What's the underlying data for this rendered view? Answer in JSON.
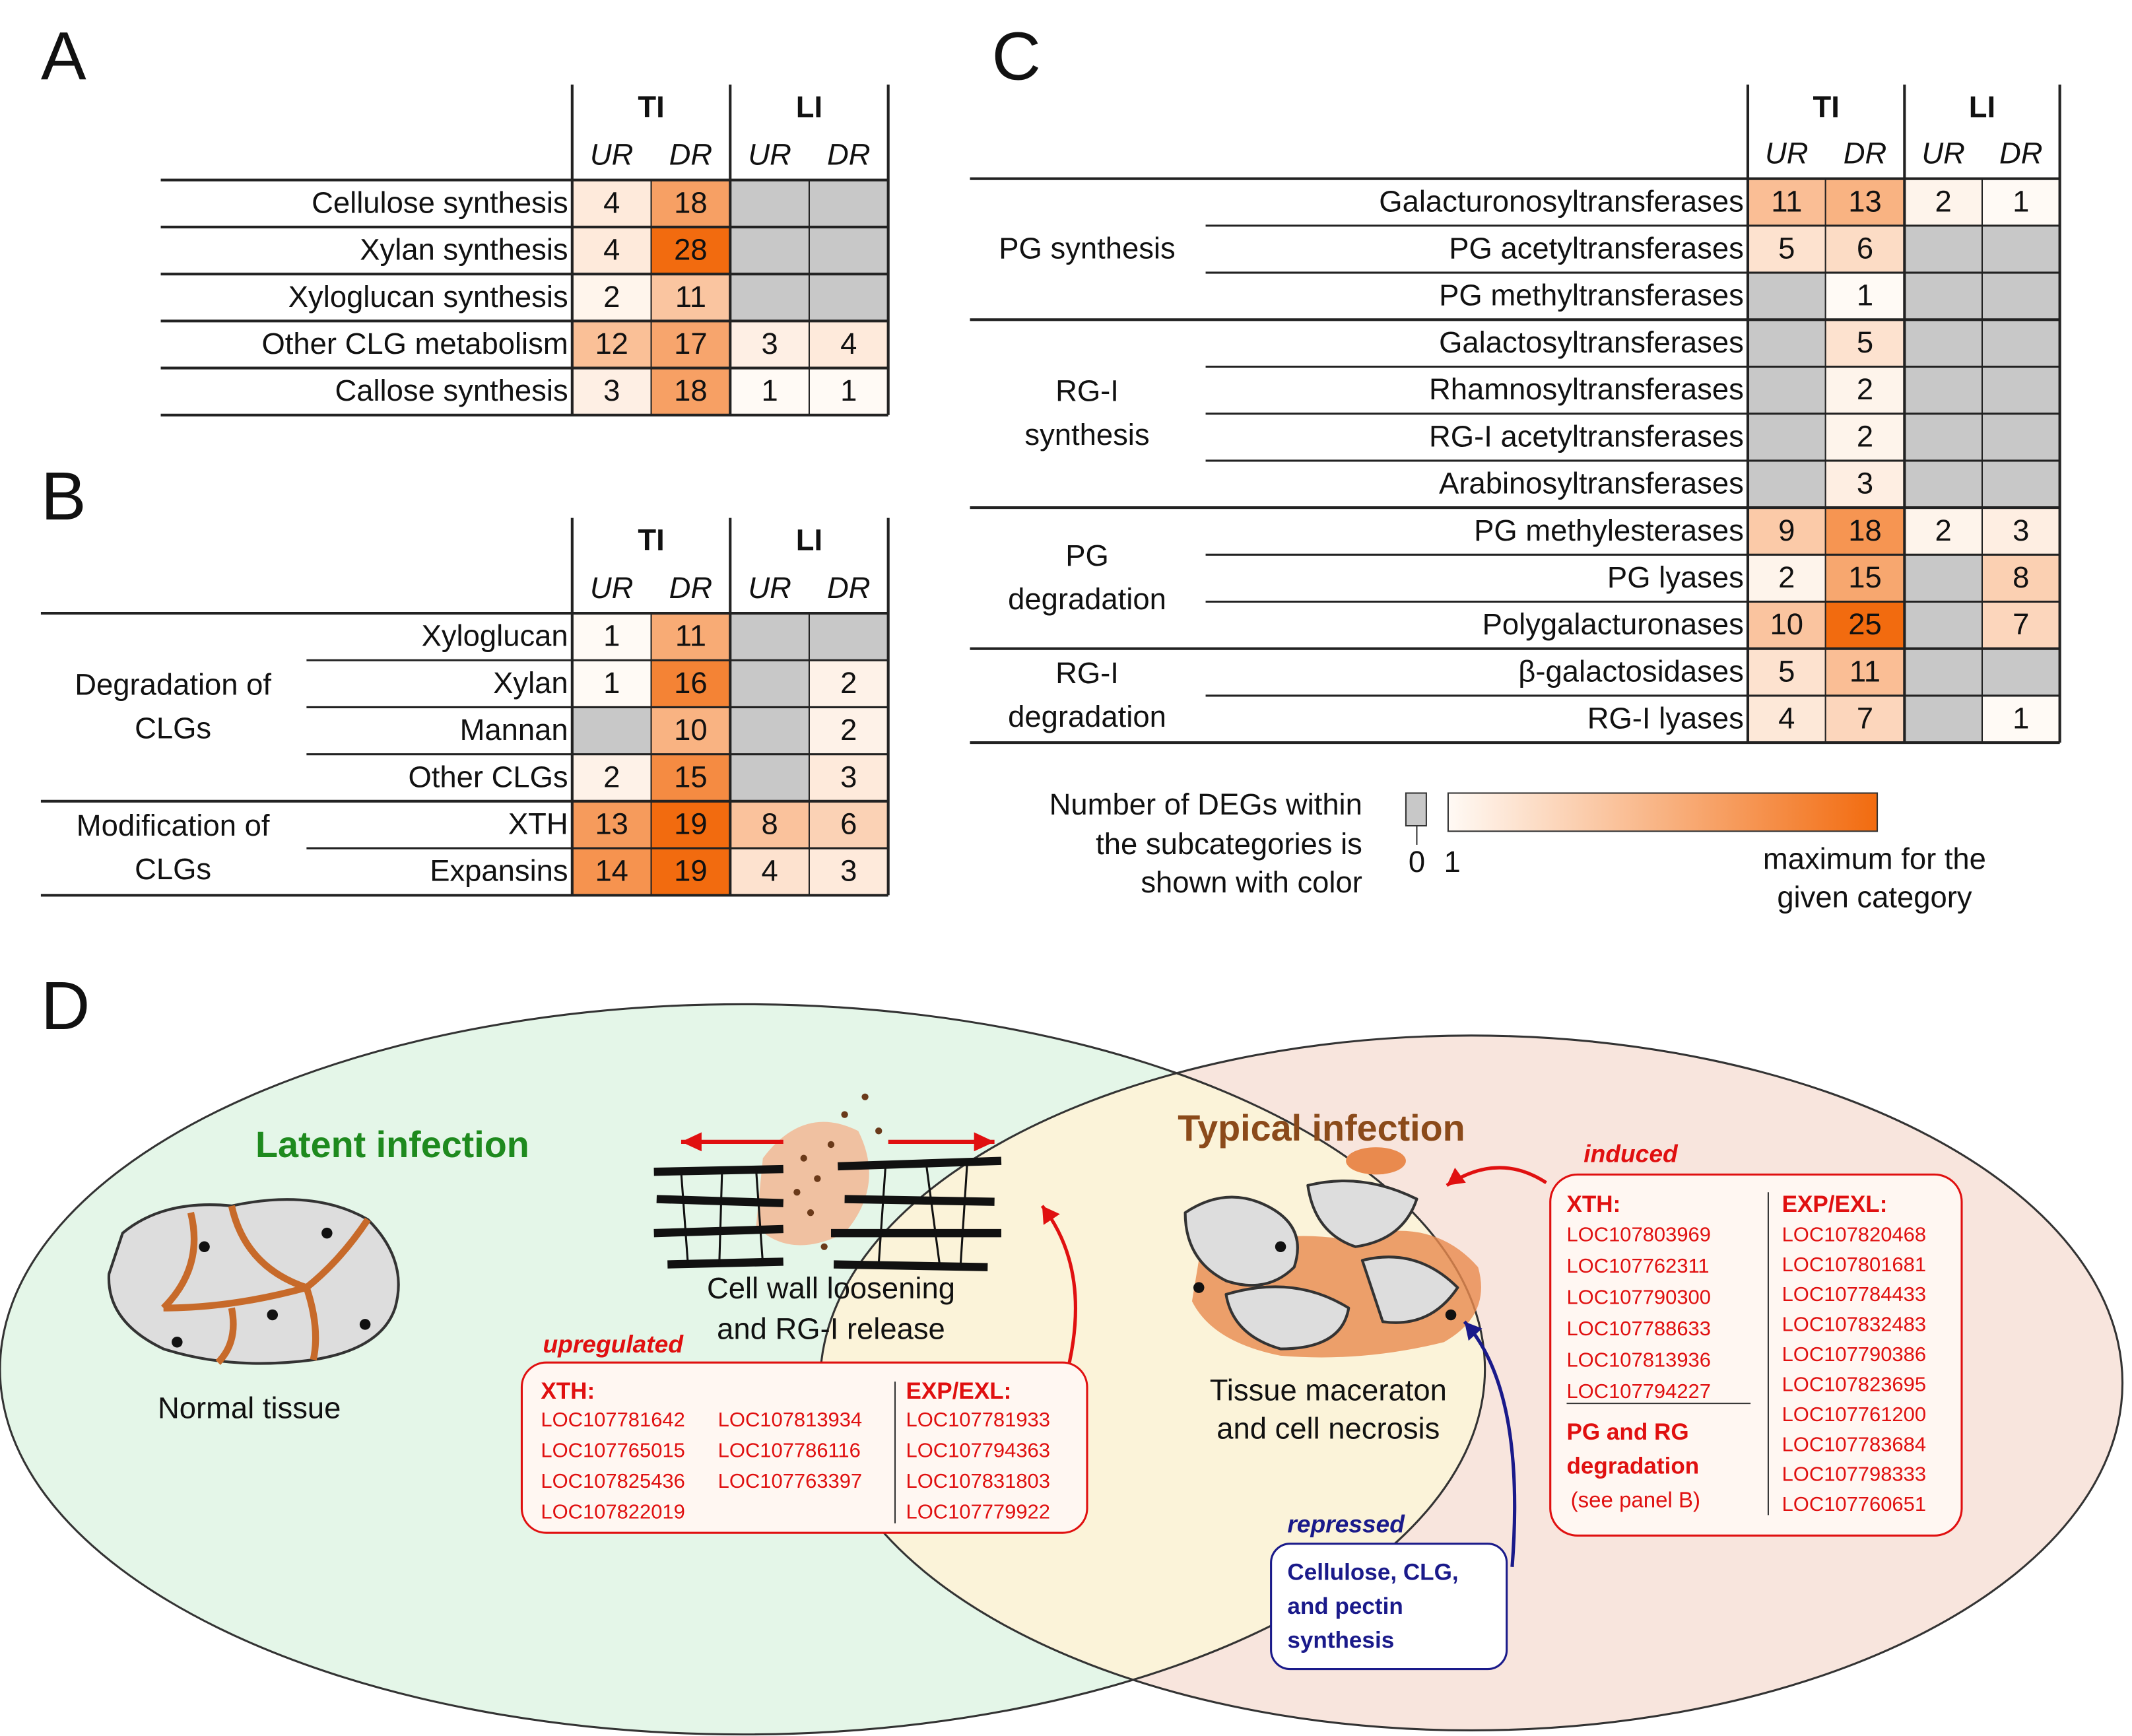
{
  "panel_a": {
    "label": "A",
    "groups": [
      {
        "name": "TI",
        "cols": [
          "UR",
          "DR"
        ]
      },
      {
        "name": "LI",
        "cols": [
          "UR",
          "DR"
        ]
      }
    ],
    "rows": [
      {
        "name": "Cellulose synthesis",
        "values": [
          4,
          18,
          null,
          null
        ]
      },
      {
        "name": "Xylan synthesis",
        "values": [
          4,
          28,
          null,
          null
        ]
      },
      {
        "name": "Xyloglucan synthesis",
        "values": [
          2,
          11,
          null,
          null
        ]
      },
      {
        "name": "Other CLG metabolism",
        "values": [
          12,
          17,
          3,
          4
        ]
      },
      {
        "name": "Callose synthesis",
        "values": [
          3,
          18,
          1,
          1
        ]
      }
    ]
  },
  "panel_b": {
    "label": "B",
    "groups": [
      {
        "name": "TI",
        "cols": [
          "UR",
          "DR"
        ]
      },
      {
        "name": "LI",
        "cols": [
          "UR",
          "DR"
        ]
      }
    ],
    "sections": [
      {
        "label": [
          "Degradation of",
          "CLGs"
        ],
        "rows": [
          {
            "name": "Xyloglucan",
            "values": [
              1,
              11,
              null,
              null
            ]
          },
          {
            "name": "Xylan",
            "values": [
              1,
              16,
              null,
              2
            ]
          },
          {
            "name": "Mannan",
            "values": [
              null,
              10,
              null,
              2
            ]
          },
          {
            "name": "Other CLGs",
            "values": [
              2,
              15,
              null,
              3
            ]
          }
        ]
      },
      {
        "label": [
          "Modification of",
          "CLGs"
        ],
        "rows": [
          {
            "name": "XTH",
            "values": [
              13,
              19,
              8,
              6
            ]
          },
          {
            "name": "Expansins",
            "values": [
              14,
              19,
              4,
              3
            ]
          }
        ]
      }
    ]
  },
  "panel_c": {
    "label": "C",
    "groups": [
      {
        "name": "TI",
        "cols": [
          "UR",
          "DR"
        ]
      },
      {
        "name": "LI",
        "cols": [
          "UR",
          "DR"
        ]
      }
    ],
    "sections": [
      {
        "label": [
          "PG synthesis"
        ],
        "rows": [
          {
            "name": "Galacturonosyltransferases",
            "values": [
              11,
              13,
              2,
              1
            ]
          },
          {
            "name": "PG acetyltransferases",
            "values": [
              5,
              6,
              null,
              null
            ]
          },
          {
            "name": "PG methyltransferases",
            "values": [
              null,
              1,
              null,
              null
            ]
          }
        ]
      },
      {
        "label": [
          "RG-I",
          "synthesis"
        ],
        "rows": [
          {
            "name": "Galactosyltransferases",
            "values": [
              null,
              5,
              null,
              null
            ]
          },
          {
            "name": "Rhamnosyltransferases",
            "values": [
              null,
              2,
              null,
              null
            ]
          },
          {
            "name": "RG-I acetyltransferases",
            "values": [
              null,
              2,
              null,
              null
            ]
          },
          {
            "name": "Arabinosyltransferases",
            "values": [
              null,
              3,
              null,
              null
            ]
          }
        ]
      },
      {
        "label": [
          "PG",
          "degradation"
        ],
        "rows": [
          {
            "name": "PG methylesterases",
            "values": [
              9,
              18,
              2,
              3
            ]
          },
          {
            "name": "PG lyases",
            "values": [
              2,
              15,
              null,
              8
            ]
          },
          {
            "name": "Polygalacturonases",
            "values": [
              10,
              25,
              null,
              7
            ]
          }
        ]
      },
      {
        "label": [
          "RG-I",
          "degradation"
        ],
        "rows": [
          {
            "name": "β-galactosidases",
            "values": [
              5,
              11,
              null,
              null
            ]
          },
          {
            "name": "RG-I lyases",
            "values": [
              4,
              7,
              null,
              1
            ]
          }
        ]
      }
    ]
  },
  "legend": {
    "caption": [
      "Number of DEGs within",
      "the subcategories is",
      "shown with color"
    ],
    "zero": 0,
    "one": 1,
    "max": [
      "maximum for the",
      "given category"
    ]
  },
  "diagram": {
    "label": "D",
    "latent": "Latent infection",
    "typical": "Typical infection",
    "normal": "Normal tissue",
    "loosening": [
      "Cell wall loosening",
      "and RG-I release"
    ],
    "upregulated": {
      "title": "upregulated",
      "xth_head": "XTH:",
      "xth": [
        "LOC107781642",
        "LOC107765015",
        "LOC107825436",
        "LOC107822019",
        "LOC107813934",
        "LOC107786116",
        "LOC107763397"
      ],
      "exp_head": "EXP/EXL:",
      "exp": [
        "LOC107781933",
        "LOC107794363",
        "LOC107831803",
        "LOC107779922"
      ]
    },
    "maceration": [
      "Tissue maceraton",
      "and cell necrosis"
    ],
    "induced": {
      "title": "induced",
      "xth_head": "XTH:",
      "xth": [
        "LOC107803969",
        "LOC107762311",
        "LOC107790300",
        "LOC107788633",
        "LOC107813936",
        "LOC107794227"
      ],
      "degradation": [
        "PG and RG",
        "degradation"
      ],
      "note": "(see panel B)",
      "exp_head": "EXP/EXL:",
      "exp": [
        "LOC107820468",
        "LOC107801681",
        "LOC107784433",
        "LOC107832483",
        "LOC107790386",
        "LOC107823695",
        "LOC107761200",
        "LOC107783684",
        "LOC107798333",
        "LOC107760651"
      ]
    },
    "repressed": {
      "title": "repressed",
      "lines": [
        "Cellulose, CLG,",
        "and pectin",
        "synthesis"
      ]
    }
  }
}
